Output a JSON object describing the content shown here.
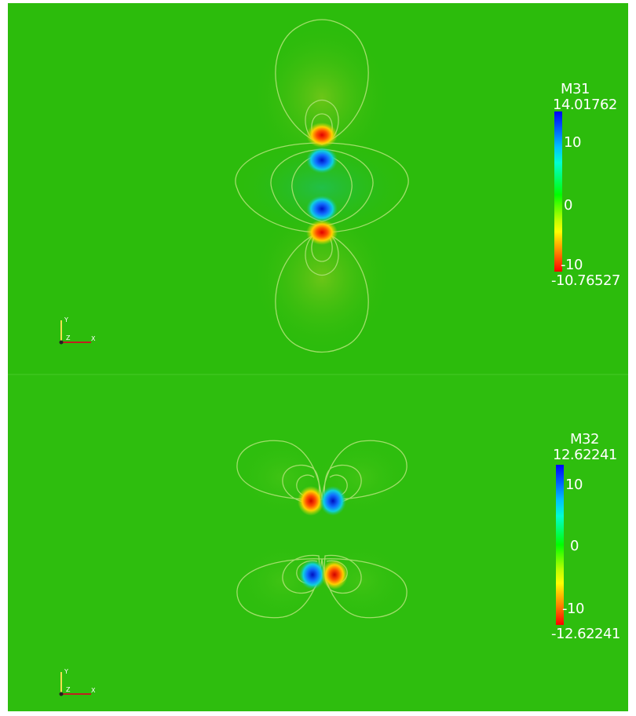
{
  "plots": [
    {
      "field_name": "M31",
      "max_value": "14.01762",
      "min_value": "-10.76527",
      "ticks": [
        "10",
        "0",
        "-10"
      ],
      "axes": {
        "x": "X",
        "y": "Y",
        "z": "Z"
      }
    },
    {
      "field_name": "M32",
      "max_value": "12.62241",
      "min_value": "-12.62241",
      "ticks": [
        "10",
        "0",
        "-10"
      ],
      "axes": {
        "x": "X",
        "y": "Y",
        "z": "Z"
      }
    }
  ],
  "colors": {
    "background": "#2cbc0c",
    "contour_line": "#a8e070",
    "colormap": [
      "#0000ff",
      "#00ffff",
      "#00ff00",
      "#ffff00",
      "#ff0000"
    ]
  }
}
